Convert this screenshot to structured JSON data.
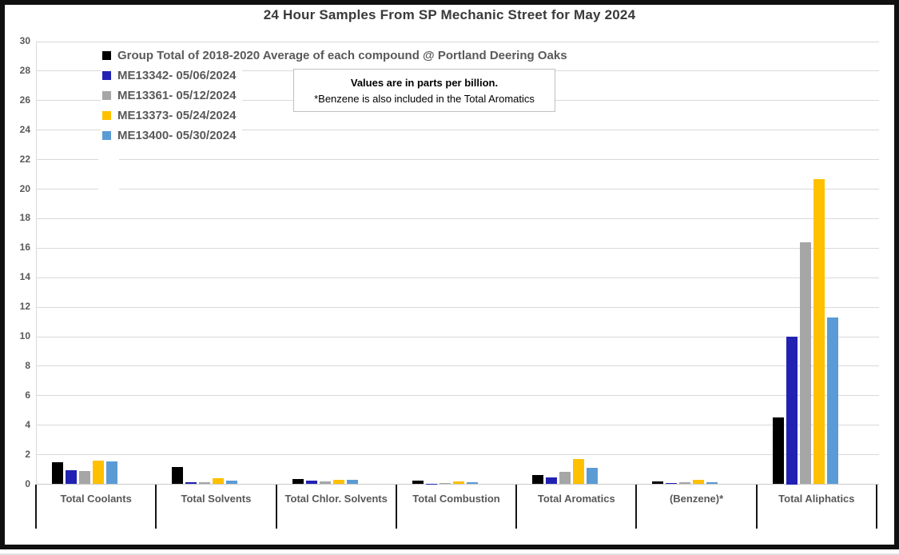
{
  "window": {
    "frame_color": "#101010",
    "background": "#ffffff"
  },
  "chart_data": {
    "type": "bar",
    "title": "24 Hour Samples From SP Mechanic Street for May 2024",
    "ylabel": "",
    "xlabel": "",
    "ylim": [
      0,
      30
    ],
    "ytick_step": 2,
    "grid": true,
    "legend_position": "top-left",
    "categories": [
      "Total Coolants",
      "Total Solvents",
      "Total Chlor. Solvents",
      "Total Combustion",
      "Total Aromatics",
      "(Benzene)*",
      "Total Aliphatics"
    ],
    "series": [
      {
        "name": "Group Total of 2018-2020 Average of each compound @ Portland Deering Oaks",
        "color": "#000000",
        "values": [
          1.5,
          1.15,
          0.35,
          0.25,
          0.6,
          0.2,
          4.5
        ]
      },
      {
        "name": "ME13342- 05/06/2024",
        "color": "#2222b2",
        "values": [
          0.95,
          0.15,
          0.22,
          0.02,
          0.45,
          0.1,
          10.0
        ]
      },
      {
        "name": "ME13361- 05/12/2024",
        "color": "#a6a6a6",
        "values": [
          0.9,
          0.15,
          0.2,
          0.1,
          0.85,
          0.15,
          16.4
        ]
      },
      {
        "name": "ME13373- 05/24/2024",
        "color": "#ffc000",
        "values": [
          1.6,
          0.42,
          0.3,
          0.2,
          1.7,
          0.28,
          20.7
        ]
      },
      {
        "name": "ME13400- 05/30/2024",
        "color": "#5b9bd5",
        "values": [
          1.55,
          0.26,
          0.3,
          0.12,
          1.1,
          0.15,
          11.3
        ]
      }
    ]
  },
  "annotation": {
    "line1": "Values are in parts per billion.",
    "line2": "*Benzene is also included in the Total Aromatics"
  }
}
